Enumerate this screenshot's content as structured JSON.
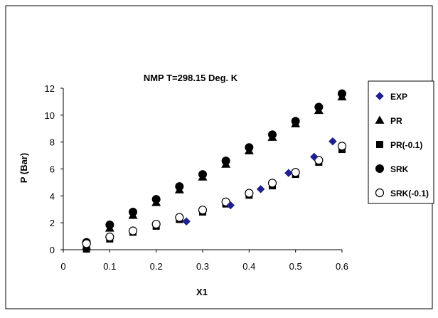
{
  "chart_data": {
    "type": "scatter",
    "title": "NMP   T=298.15 Deg. K",
    "xlabel": "X1",
    "ylabel": "P  (Bar)",
    "xlim": [
      0,
      0.6
    ],
    "ylim": [
      0,
      12
    ],
    "x_ticks": [
      "0",
      "0.1",
      "0.2",
      "0.3",
      "0.4",
      "0.5",
      "0.6"
    ],
    "y_ticks": [
      "0",
      "2",
      "4",
      "6",
      "8",
      "10",
      "12"
    ],
    "grid": false,
    "legend_position": "right",
    "series": [
      {
        "name": "EXP",
        "marker": "diamond",
        "color": "#1f1f8f",
        "x": [
          0.265,
          0.36,
          0.425,
          0.485,
          0.54,
          0.58
        ],
        "y": [
          2.1,
          3.3,
          4.5,
          5.7,
          6.9,
          8.05
        ]
      },
      {
        "name": "PR",
        "marker": "triangle",
        "color": "#000000",
        "x": [
          0.05,
          0.1,
          0.15,
          0.2,
          0.25,
          0.3,
          0.35,
          0.4,
          0.45,
          0.5,
          0.55,
          0.6
        ],
        "y": [
          0.25,
          1.6,
          2.55,
          3.5,
          4.45,
          5.4,
          6.35,
          7.35,
          8.35,
          9.35,
          10.35,
          11.35
        ]
      },
      {
        "name": "PR(-0.1)",
        "marker": "square",
        "color": "#000000",
        "x": [
          0.05,
          0.1,
          0.15,
          0.2,
          0.25,
          0.3,
          0.35,
          0.4,
          0.45,
          0.5,
          0.55,
          0.6
        ],
        "y": [
          0.05,
          0.8,
          1.3,
          1.75,
          2.25,
          2.8,
          3.4,
          4.05,
          4.75,
          5.6,
          6.5,
          7.45
        ]
      },
      {
        "name": "SRK",
        "marker": "circle-filled",
        "color": "#000000",
        "x": [
          0.05,
          0.1,
          0.15,
          0.2,
          0.25,
          0.3,
          0.35,
          0.4,
          0.45,
          0.5,
          0.55,
          0.6
        ],
        "y": [
          0.55,
          1.85,
          2.8,
          3.75,
          4.7,
          5.6,
          6.6,
          7.6,
          8.55,
          9.55,
          10.6,
          11.6
        ]
      },
      {
        "name": "SRK(-0.1)",
        "marker": "circle-open",
        "color": "#000000",
        "x": [
          0.05,
          0.1,
          0.15,
          0.2,
          0.25,
          0.3,
          0.35,
          0.4,
          0.45,
          0.5,
          0.55,
          0.6
        ],
        "y": [
          0.45,
          0.95,
          1.4,
          1.9,
          2.4,
          2.95,
          3.55,
          4.2,
          4.95,
          5.75,
          6.65,
          7.7
        ]
      }
    ]
  }
}
